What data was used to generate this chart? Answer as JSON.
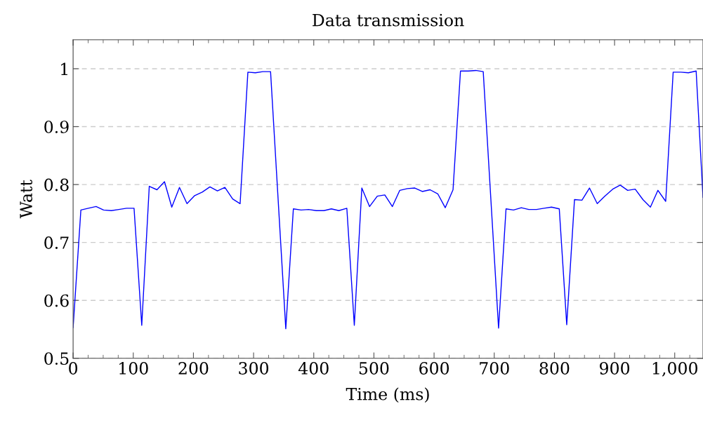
{
  "chart_data": {
    "type": "line",
    "title": "Data transmission",
    "xlabel": "Time (ms)",
    "ylabel": "Watt",
    "xlim": [
      0,
      1047
    ],
    "ylim": [
      0.5,
      1.05
    ],
    "xticks": [
      0,
      {
        "value": 25,
        "label": null
      },
      {
        "value": 50,
        "label": null
      },
      {
        "value": 75,
        "label": null
      },
      100,
      {
        "value": 125,
        "label": null
      },
      {
        "value": 150,
        "label": null
      },
      {
        "value": 175,
        "label": null
      },
      200,
      {
        "value": 225,
        "label": null
      },
      {
        "value": 250,
        "label": null
      },
      {
        "value": 275,
        "label": null
      },
      300,
      {
        "value": 325,
        "label": null
      },
      {
        "value": 350,
        "label": null
      },
      {
        "value": 375,
        "label": null
      },
      400,
      {
        "value": 425,
        "label": null
      },
      {
        "value": 450,
        "label": null
      },
      {
        "value": 475,
        "label": null
      },
      500,
      {
        "value": 525,
        "label": null
      },
      {
        "value": 550,
        "label": null
      },
      {
        "value": 575,
        "label": null
      },
      600,
      {
        "value": 625,
        "label": null
      },
      {
        "value": 650,
        "label": null
      },
      {
        "value": 675,
        "label": null
      },
      700,
      {
        "value": 725,
        "label": null
      },
      {
        "value": 750,
        "label": null
      },
      {
        "value": 775,
        "label": null
      },
      800,
      {
        "value": 825,
        "label": null
      },
      {
        "value": 850,
        "label": null
      },
      {
        "value": 875,
        "label": null
      },
      900,
      {
        "value": 925,
        "label": null
      },
      {
        "value": 950,
        "label": null
      },
      {
        "value": 975,
        "label": null
      },
      {
        "value": 1000,
        "label": "1,000"
      },
      {
        "value": 1025,
        "label": null
      }
    ],
    "yticks": [
      0.5,
      0.6,
      0.7,
      0.8,
      0.9,
      1
    ],
    "grid": "y",
    "marker": "none",
    "line_style": "solid",
    "series": [
      {
        "color": "#0000ff",
        "x": [
          0,
          12.9,
          25.3,
          38.2,
          50.6,
          63.5,
          76.0,
          88.8,
          101.3,
          114.1,
          126.6,
          139.4,
          151.9,
          164.0,
          176.8,
          189.3,
          202.1,
          214.6,
          227.4,
          239.9,
          252.3,
          265.2,
          277.6,
          290.5,
          302.9,
          315.4,
          328.2,
          353.5,
          366.1,
          379.0,
          391.4,
          404.3,
          416.8,
          429.3,
          441.7,
          455.0,
          467.4,
          479.9,
          492.8,
          505.6,
          518.1,
          530.6,
          543.0,
          555.5,
          568.0,
          580.4,
          593.3,
          606.1,
          618.6,
          631.5,
          643.9,
          656.8,
          669.3,
          681.7,
          707.2,
          719.6,
          732.1,
          745.0,
          757.4,
          770.3,
          782.7,
          795.2,
          808.1,
          820.5,
          833.4,
          845.8,
          858.3,
          871.2,
          884.0,
          896.9,
          909.4,
          921.8,
          934.3,
          947.1,
          959.6,
          972.1,
          985.0,
          997.4,
          1010.3,
          1022.7,
          1035.6,
          1047
        ],
        "values": [
          0.553,
          0.756,
          0.759,
          0.762,
          0.756,
          0.755,
          0.757,
          0.759,
          0.759,
          0.557,
          0.797,
          0.791,
          0.805,
          0.761,
          0.795,
          0.767,
          0.781,
          0.787,
          0.796,
          0.789,
          0.795,
          0.775,
          0.767,
          0.994,
          0.993,
          0.995,
          0.995,
          0.551,
          0.758,
          0.756,
          0.757,
          0.755,
          0.755,
          0.758,
          0.755,
          0.759,
          0.557,
          0.794,
          0.762,
          0.78,
          0.782,
          0.762,
          0.79,
          0.793,
          0.794,
          0.788,
          0.791,
          0.784,
          0.76,
          0.791,
          0.996,
          0.996,
          0.997,
          0.995,
          0.552,
          0.758,
          0.756,
          0.76,
          0.757,
          0.757,
          0.759,
          0.761,
          0.758,
          0.558,
          0.774,
          0.773,
          0.794,
          0.767,
          0.78,
          0.792,
          0.799,
          0.79,
          0.792,
          0.774,
          0.761,
          0.79,
          0.771,
          0.994,
          0.994,
          0.993,
          0.996,
          0.778
        ]
      }
    ]
  }
}
